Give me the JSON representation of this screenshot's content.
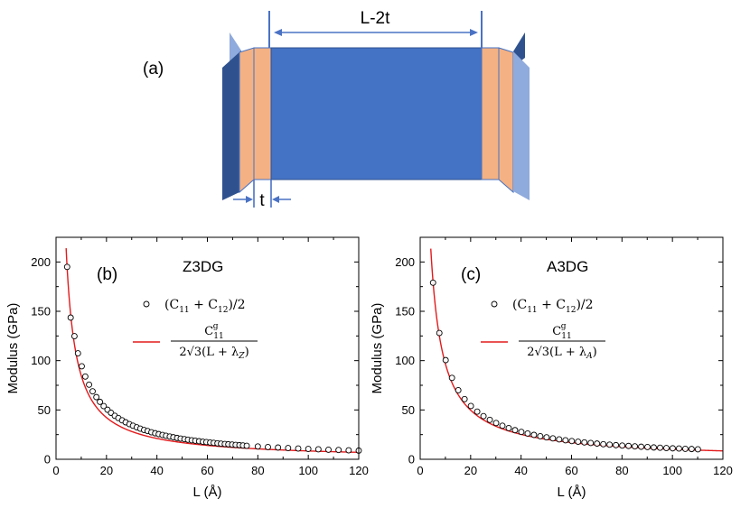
{
  "colors": {
    "block_blue": "#4472c4",
    "block_orange": "#f4b183",
    "dark_blue": "#2f528f",
    "light_blue": "#8faadc",
    "dim_line": "#4a72c4",
    "fit_red": "#e31a1c"
  },
  "diagram": {
    "panel_label": "(a)",
    "length_label": "L-2t",
    "thickness_label": "t"
  },
  "chart_data": [
    {
      "type": "scatter",
      "panel_label": "(b)",
      "name": "Z3DG",
      "xlabel": "L (Å)",
      "ylabel": "Modulus (GPa)",
      "xlim": [
        0,
        120
      ],
      "ylim": [
        0,
        225
      ],
      "xticks": [
        "0",
        "20",
        "40",
        "60",
        "80",
        "100",
        "120"
      ],
      "yticks": [
        "0",
        "50",
        "100",
        "150",
        "200"
      ],
      "legend": {
        "marker_entry": {
          "main": "(C",
          "sub1": "11",
          "mid": " + C",
          "sub2": "12",
          "end": ")/2"
        },
        "line_entry": {
          "num": "C",
          "num_sub": "11",
          "num_sup": "g",
          "den_main": "2√3(L + λ",
          "den_sub": "Z",
          "den_end": ")"
        }
      },
      "series": [
        {
          "x": [
            4.4,
            5.8,
            7.3,
            8.7,
            10.2,
            11.6,
            13.1,
            14.5,
            16.0,
            17.4,
            18.9,
            20.4,
            21.8,
            23.3,
            24.7,
            26.2,
            27.6,
            29.1,
            30.5,
            32.0,
            33.4,
            34.9,
            36.3,
            37.8,
            39.3,
            40.7,
            42.2,
            43.6,
            45.1,
            46.5,
            48.0,
            49.4,
            50.9,
            52.3,
            53.8,
            55.2,
            56.7,
            58.2,
            59.6,
            61.1,
            62.5,
            64.0,
            65.4,
            66.9,
            68.3,
            69.8,
            71.2,
            72.7,
            74.1,
            75.6,
            80.0,
            84.0,
            88.0,
            92.0,
            96.0,
            100.0,
            104.0,
            108.0,
            112.0,
            116.0,
            120.0
          ],
          "y": [
            195.0,
            143.6,
            124.8,
            107.4,
            94.3,
            83.9,
            75.6,
            68.9,
            63.0,
            58.2,
            53.9,
            50.2,
            47.1,
            44.1,
            41.8,
            39.5,
            37.5,
            35.6,
            34.0,
            32.4,
            31.0,
            29.7,
            28.6,
            27.4,
            26.4,
            25.5,
            24.6,
            23.8,
            23.0,
            22.3,
            21.6,
            21.0,
            20.4,
            19.8,
            19.3,
            18.8,
            18.3,
            17.8,
            17.4,
            17.0,
            16.6,
            16.2,
            15.8,
            15.5,
            15.2,
            14.9,
            14.6,
            14.3,
            14.0,
            13.7,
            13.0,
            12.4,
            11.9,
            11.4,
            10.9,
            10.5,
            10.1,
            9.7,
            9.4,
            9.1,
            8.8
          ]
        }
      ],
      "fit": {
        "numerator": 843,
        "lambda": -0.06,
        "x_start": 3.75,
        "x_end": 120
      }
    },
    {
      "type": "scatter",
      "panel_label": "(c)",
      "name": "A3DG",
      "xlabel": "L (Å)",
      "ylabel": "Modulus (GPa)",
      "xlim": [
        0,
        120
      ],
      "ylim": [
        0,
        225
      ],
      "xticks": [
        "0",
        "20",
        "40",
        "60",
        "80",
        "100",
        "120"
      ],
      "yticks": [
        "0",
        "50",
        "100",
        "150",
        "200"
      ],
      "legend": {
        "marker_entry": {
          "main": "(C",
          "sub1": "11",
          "mid": " + C",
          "sub2": "12",
          "end": ")/2"
        },
        "line_entry": {
          "num": "C",
          "num_sub": "11",
          "num_sup": "g",
          "den_main": "2√3(L + λ",
          "den_sub": "A",
          "den_end": ")"
        }
      },
      "series": [
        {
          "x": [
            5.1,
            7.6,
            10.1,
            12.6,
            15.1,
            17.6,
            20.1,
            22.6,
            25.1,
            27.6,
            30.1,
            32.6,
            35.1,
            37.6,
            40.1,
            42.6,
            45.1,
            47.6,
            50.1,
            52.6,
            55.1,
            57.6,
            60.1,
            62.6,
            65.1,
            67.6,
            70.1,
            72.6,
            75.1,
            77.6,
            80.1,
            82.6,
            85.1,
            87.6,
            90.1,
            92.6,
            95.1,
            97.6,
            100.1,
            102.6,
            105.1,
            107.6,
            110.1
          ],
          "y": [
            179.0,
            128.0,
            100.5,
            82.5,
            70.0,
            61.0,
            54.0,
            48.3,
            43.7,
            40.0,
            36.8,
            34.0,
            31.6,
            29.5,
            27.7,
            26.1,
            24.7,
            23.4,
            22.2,
            21.2,
            20.2,
            19.3,
            18.5,
            17.8,
            17.1,
            16.5,
            15.9,
            15.3,
            14.8,
            14.3,
            13.9,
            13.5,
            13.1,
            12.7,
            12.4,
            12.0,
            11.7,
            11.4,
            11.1,
            10.9,
            10.6,
            10.4,
            10.1
          ]
        }
      ],
      "fit": {
        "numerator": 1025,
        "lambda": 0.6,
        "x_start": 3.95,
        "x_end": 120
      }
    }
  ]
}
